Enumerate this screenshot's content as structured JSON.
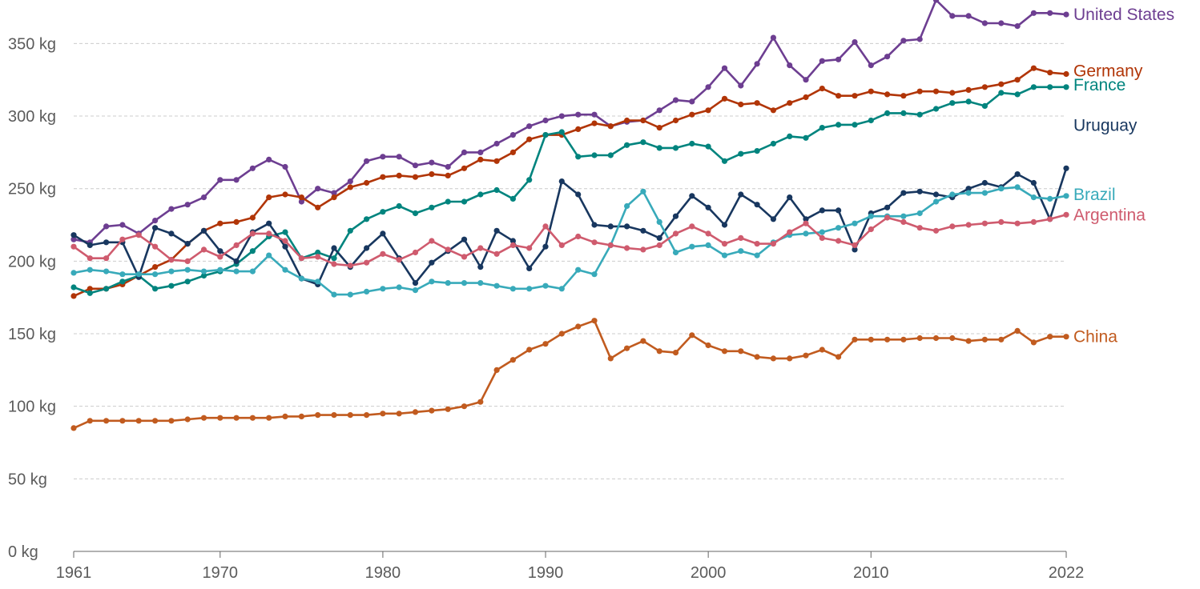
{
  "chart_data": {
    "type": "line",
    "title": "",
    "xlabel": "",
    "ylabel": "",
    "ylim": [
      0,
      380
    ],
    "xlim": [
      1961,
      2022
    ],
    "grid": true,
    "legend_placement": "right (labels at line ends)",
    "y_ticks": [
      {
        "value": 0,
        "label": "0 kg"
      },
      {
        "value": 50,
        "label": "50 kg"
      },
      {
        "value": 100,
        "label": "100 kg"
      },
      {
        "value": 150,
        "label": "150 kg"
      },
      {
        "value": 200,
        "label": "200 kg"
      },
      {
        "value": 250,
        "label": "250 kg"
      },
      {
        "value": 300,
        "label": "300 kg"
      },
      {
        "value": 350,
        "label": "350 kg"
      }
    ],
    "x_ticks": [
      {
        "value": 1961,
        "label": "1961"
      },
      {
        "value": 1970,
        "label": "1970"
      },
      {
        "value": 1980,
        "label": "1980"
      },
      {
        "value": 1990,
        "label": "1990"
      },
      {
        "value": 2000,
        "label": "2000"
      },
      {
        "value": 2010,
        "label": "2010"
      },
      {
        "value": 2022,
        "label": "2022"
      }
    ],
    "x": [
      1961,
      1962,
      1963,
      1964,
      1965,
      1966,
      1967,
      1968,
      1969,
      1970,
      1971,
      1972,
      1973,
      1974,
      1975,
      1976,
      1977,
      1978,
      1979,
      1980,
      1981,
      1982,
      1983,
      1984,
      1985,
      1986,
      1987,
      1988,
      1989,
      1990,
      1991,
      1992,
      1993,
      1994,
      1995,
      1996,
      1997,
      1998,
      1999,
      2000,
      2001,
      2002,
      2003,
      2004,
      2005,
      2006,
      2007,
      2008,
      2009,
      2010,
      2011,
      2012,
      2013,
      2014,
      2015,
      2016,
      2017,
      2018,
      2019,
      2020,
      2021,
      2022
    ],
    "series": [
      {
        "name": "United States",
        "color": "#6d3e91",
        "values": [
          215,
          213,
          224,
          225,
          219,
          228,
          236,
          239,
          244,
          256,
          256,
          264,
          270,
          265,
          241,
          250,
          247,
          255,
          269,
          272,
          272,
          266,
          268,
          265,
          275,
          275,
          281,
          287,
          293,
          297,
          300,
          301,
          301,
          293,
          296,
          297,
          304,
          311,
          310,
          320,
          333,
          321,
          336,
          354,
          335,
          325,
          338,
          339,
          351,
          335,
          341,
          352,
          353,
          380,
          369,
          369,
          364,
          364,
          362,
          371,
          371,
          370
        ]
      },
      {
        "name": "Germany",
        "color": "#b13507",
        "values": [
          176,
          181,
          181,
          184,
          190,
          196,
          201,
          212,
          221,
          226,
          227,
          230,
          244,
          246,
          244,
          237,
          244,
          251,
          254,
          258,
          259,
          258,
          260,
          259,
          264,
          270,
          269,
          275,
          284,
          287,
          287,
          291,
          295,
          293,
          297,
          297,
          292,
          297,
          301,
          304,
          312,
          308,
          309,
          304,
          309,
          313,
          319,
          314,
          314,
          317,
          315,
          314,
          317,
          317,
          316,
          318,
          320,
          322,
          325,
          333,
          330,
          329
        ]
      },
      {
        "name": "France",
        "color": "#00847e",
        "values": [
          182,
          178,
          181,
          186,
          190,
          181,
          183,
          186,
          190,
          193,
          198,
          207,
          217,
          220,
          202,
          206,
          202,
          221,
          229,
          234,
          238,
          233,
          237,
          241,
          241,
          246,
          249,
          243,
          256,
          287,
          289,
          272,
          273,
          273,
          280,
          282,
          278,
          278,
          281,
          279,
          269,
          274,
          276,
          281,
          286,
          285,
          292,
          294,
          294,
          297,
          302,
          302,
          301,
          305,
          309,
          310,
          307,
          316,
          315,
          320,
          320,
          320
        ]
      },
      {
        "name": "Uruguay",
        "color": "#18375f",
        "values": [
          218,
          211,
          213,
          213,
          189,
          223,
          219,
          212,
          221,
          207,
          200,
          220,
          226,
          210,
          188,
          184,
          209,
          196,
          209,
          219,
          202,
          185,
          199,
          207,
          215,
          196,
          221,
          214,
          195,
          210,
          255,
          246,
          225,
          224,
          224,
          221,
          216,
          231,
          245,
          237,
          225,
          246,
          239,
          229,
          244,
          229,
          235,
          235,
          208,
          233,
          237,
          247,
          248,
          246,
          244,
          250,
          254,
          251,
          260,
          254,
          229,
          264
        ]
      },
      {
        "name": "Brazil",
        "color": "#38aaba",
        "values": [
          192,
          194,
          193,
          191,
          191,
          191,
          193,
          194,
          193,
          194,
          193,
          193,
          204,
          194,
          188,
          186,
          177,
          177,
          179,
          181,
          182,
          180,
          186,
          185,
          185,
          185,
          183,
          181,
          181,
          183,
          181,
          194,
          191,
          211,
          238,
          248,
          227,
          206,
          210,
          211,
          204,
          207,
          204,
          213,
          218,
          219,
          220,
          223,
          226,
          231,
          231,
          231,
          233,
          241,
          246,
          247,
          247,
          250,
          251,
          244,
          243,
          245
        ]
      },
      {
        "name": "Argentina",
        "color": "#cf5b6e",
        "values": [
          210,
          202,
          202,
          215,
          218,
          210,
          201,
          200,
          208,
          203,
          211,
          219,
          219,
          214,
          202,
          203,
          198,
          197,
          199,
          205,
          201,
          206,
          214,
          208,
          203,
          209,
          205,
          211,
          209,
          224,
          211,
          217,
          213,
          211,
          209,
          208,
          211,
          219,
          224,
          219,
          212,
          216,
          212,
          212,
          220,
          226,
          216,
          214,
          211,
          222,
          230,
          227,
          223,
          221,
          224,
          225,
          226,
          227,
          226,
          227,
          229,
          232
        ]
      },
      {
        "name": "China",
        "color": "#c15b1f",
        "values": [
          85,
          90,
          90,
          90,
          90,
          90,
          90,
          91,
          92,
          92,
          92,
          92,
          92,
          93,
          93,
          94,
          94,
          94,
          94,
          95,
          95,
          96,
          97,
          98,
          100,
          103,
          125,
          132,
          139,
          143,
          150,
          155,
          159,
          133,
          140,
          145,
          138,
          137,
          149,
          142,
          138,
          138,
          134,
          133,
          133,
          135,
          139,
          134,
          146,
          146,
          146,
          146,
          147,
          147,
          147,
          145,
          146,
          146,
          152,
          144,
          148,
          148
        ]
      }
    ]
  }
}
